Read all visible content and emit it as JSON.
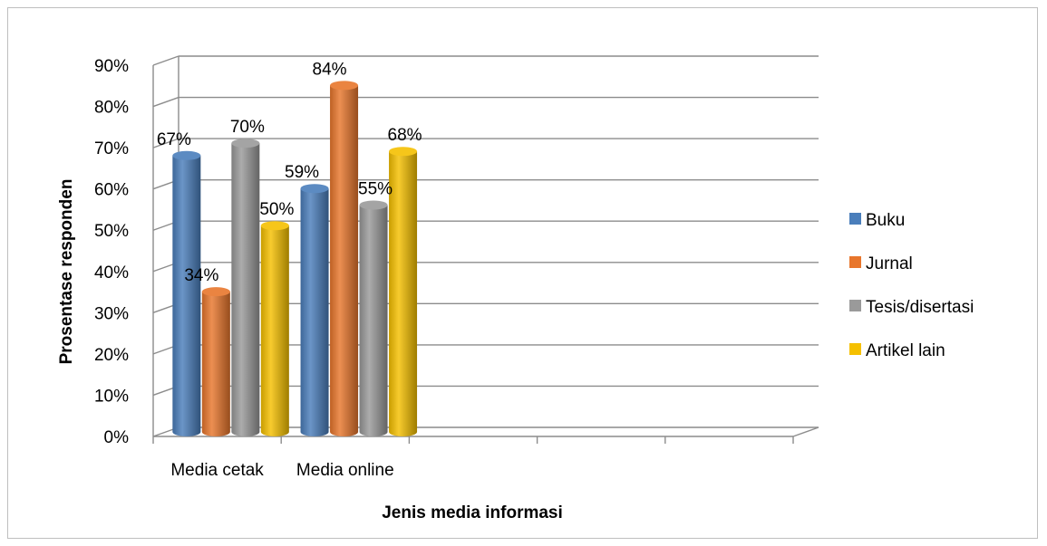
{
  "chart_data": {
    "type": "bar",
    "categories": [
      "Media cetak",
      "Media online",
      "",
      "",
      ""
    ],
    "series": [
      {
        "name": "Buku",
        "values": [
          67,
          59,
          null,
          null,
          null
        ],
        "color": "#4a7ebb"
      },
      {
        "name": "Jurnal",
        "values": [
          34,
          84,
          null,
          null,
          null
        ],
        "color": "#e8762c"
      },
      {
        "name": "Tesis/disertasi",
        "values": [
          70,
          55,
          null,
          null,
          null
        ],
        "color": "#9a9a9a"
      },
      {
        "name": "Artikel lain",
        "values": [
          50,
          68,
          null,
          null,
          null
        ],
        "color": "#f5c000"
      }
    ],
    "data_labels": [
      [
        "67%",
        "59%"
      ],
      [
        "34%",
        "84%"
      ],
      [
        "70%",
        "55%"
      ],
      [
        "50%",
        "68%"
      ]
    ],
    "xlabel": "Jenis media informasi",
    "ylabel": "Prosentase responden",
    "ylim": [
      0,
      90
    ],
    "y_ticks": [
      "0%",
      "10%",
      "20%",
      "30%",
      "40%",
      "50%",
      "60%",
      "70%",
      "80%",
      "90%"
    ],
    "grid": true,
    "legend_position": "right",
    "style": "3d-cylinder"
  }
}
